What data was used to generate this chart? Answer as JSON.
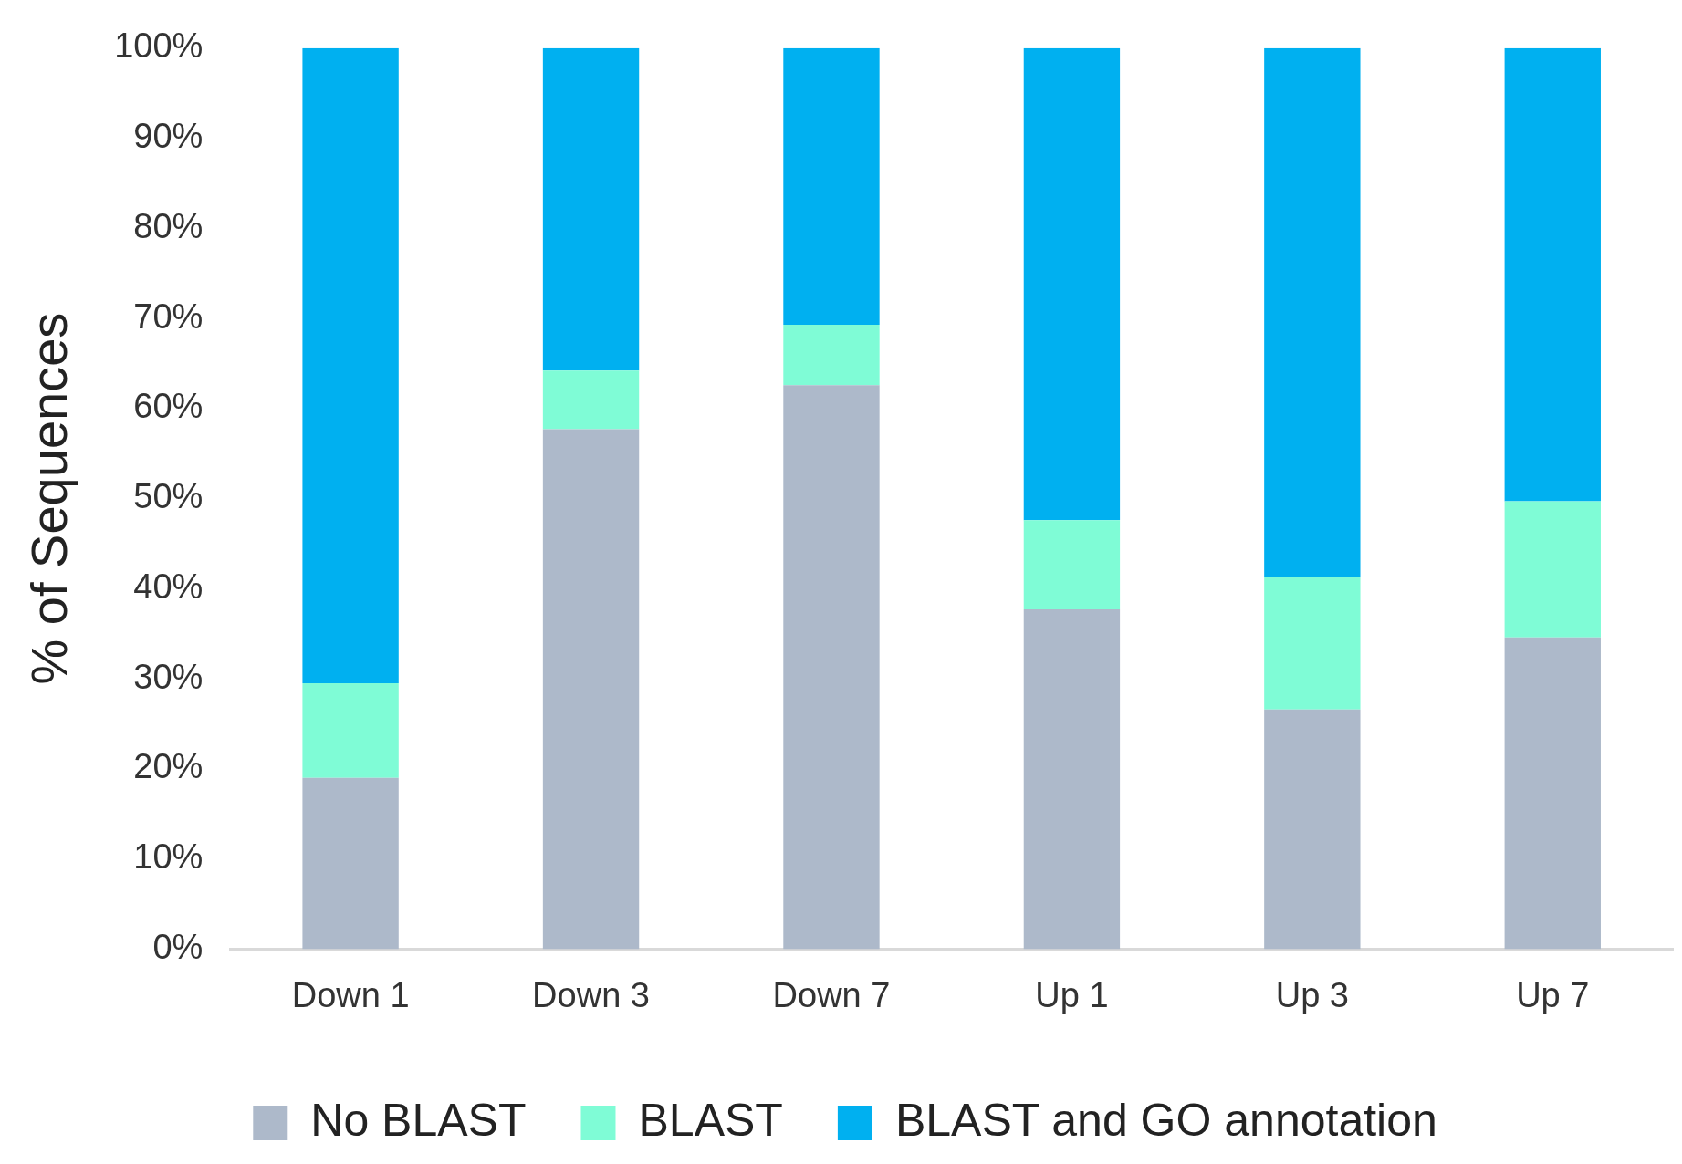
{
  "chart_data": {
    "type": "bar",
    "stacked": true,
    "ylabel": "% of Sequences",
    "categories": [
      "Down 1",
      "Down 3",
      "Down 7",
      "Up 1",
      "Up 3",
      "Up 7"
    ],
    "series": [
      {
        "name": "No BLAST",
        "color": "#adb9ca",
        "values": [
          19,
          57.7,
          62.6,
          37.7,
          26.6,
          34.6
        ]
      },
      {
        "name": "BLAST",
        "color": "#7ffcd6",
        "values": [
          10.5,
          6.5,
          6.7,
          9.9,
          14.7,
          15.1
        ]
      },
      {
        "name": "BLAST and GO annotation",
        "color": "#00b0f0",
        "values": [
          70.5,
          35.8,
          30.7,
          52.4,
          58.7,
          50.3
        ]
      }
    ],
    "ylim": [
      0,
      100
    ],
    "yticks": [
      {
        "value": 0,
        "label": "0%"
      },
      {
        "value": 10,
        "label": "10%"
      },
      {
        "value": 20,
        "label": "20%"
      },
      {
        "value": 30,
        "label": "30%"
      },
      {
        "value": 40,
        "label": "40%"
      },
      {
        "value": 50,
        "label": "50%"
      },
      {
        "value": 60,
        "label": "60%"
      },
      {
        "value": 70,
        "label": "70%"
      },
      {
        "value": 80,
        "label": "80%"
      },
      {
        "value": 90,
        "label": "90%"
      },
      {
        "value": 100,
        "label": "100%"
      }
    ],
    "grid": false,
    "legend": "bottom"
  }
}
